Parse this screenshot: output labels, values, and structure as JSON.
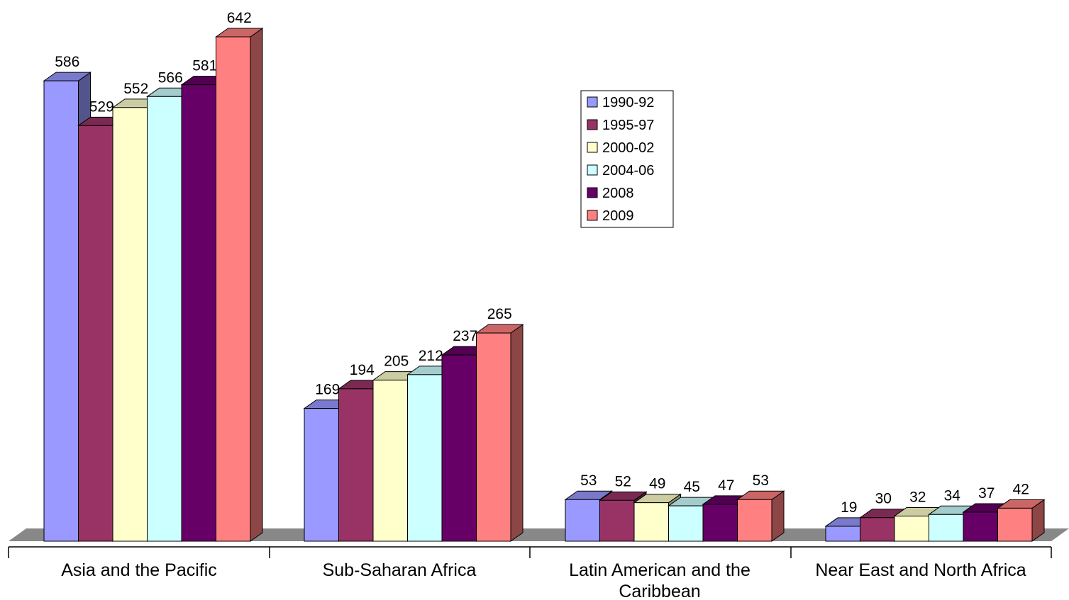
{
  "chart_data": {
    "type": "bar",
    "title": "",
    "xlabel": "",
    "ylabel": "",
    "ylim": [
      0,
      642
    ],
    "grid": false,
    "legend_position": "top-center",
    "categories": [
      [
        "Asia and the Pacific"
      ],
      [
        "Sub-Saharan Africa"
      ],
      [
        "Latin American and the",
        "Caribbean"
      ],
      [
        "Near East and North Africa"
      ]
    ],
    "series": [
      {
        "name": "1990-92",
        "color": "#9999ff",
        "values": [
          586,
          169,
          53,
          19
        ]
      },
      {
        "name": "1995-97",
        "color": "#993366",
        "values": [
          529,
          194,
          52,
          30
        ]
      },
      {
        "name": "2000-02",
        "color": "#ffffcc",
        "values": [
          552,
          205,
          49,
          32
        ]
      },
      {
        "name": "2004-06",
        "color": "#ccffff",
        "values": [
          566,
          212,
          45,
          34
        ]
      },
      {
        "name": "2008",
        "color": "#660066",
        "values": [
          581,
          237,
          47,
          37
        ]
      },
      {
        "name": "2009",
        "color": "#ff8080",
        "values": [
          642,
          265,
          53,
          42
        ]
      }
    ]
  }
}
